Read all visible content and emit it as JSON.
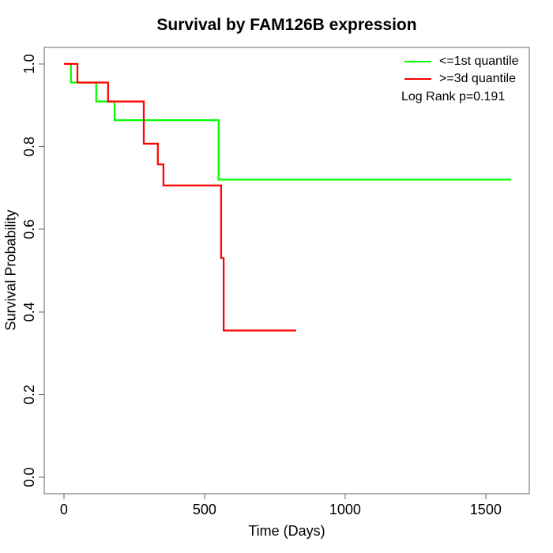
{
  "chart_data": {
    "type": "line",
    "subtype": "kaplan-meier-step",
    "title": "Survival by FAM126B expression",
    "xlabel": "Time (Days)",
    "ylabel": "Survival Probability",
    "xlim": [
      -70,
      1655
    ],
    "ylim": [
      -0.04,
      1.04
    ],
    "grid": false,
    "legend_position": "top-right",
    "x_ticks": [
      {
        "value": 0,
        "label": "0"
      },
      {
        "value": 500,
        "label": "500"
      },
      {
        "value": 1000,
        "label": "1000"
      },
      {
        "value": 1500,
        "label": "1500"
      }
    ],
    "y_ticks": [
      {
        "value": 0.0,
        "label": "0.0"
      },
      {
        "value": 0.2,
        "label": "0.2"
      },
      {
        "value": 0.4,
        "label": "0.4"
      },
      {
        "value": 0.6,
        "label": "0.6"
      },
      {
        "value": 0.8,
        "label": "0.8"
      },
      {
        "value": 1.0,
        "label": "1.0"
      }
    ],
    "series": [
      {
        "name": "<=1st quantile",
        "color": "#00ff00",
        "points": [
          [
            0,
            1.0
          ],
          [
            25,
            1.0
          ],
          [
            25,
            0.955
          ],
          [
            115,
            0.955
          ],
          [
            115,
            0.909
          ],
          [
            180,
            0.909
          ],
          [
            180,
            0.864
          ],
          [
            550,
            0.864
          ],
          [
            550,
            0.72
          ],
          [
            1590,
            0.72
          ]
        ]
      },
      {
        "name": ">=3d quantile",
        "color": "#ff0000",
        "points": [
          [
            0,
            1.0
          ],
          [
            48,
            1.0
          ],
          [
            48,
            0.955
          ],
          [
            157,
            0.955
          ],
          [
            157,
            0.909
          ],
          [
            284,
            0.909
          ],
          [
            284,
            0.807
          ],
          [
            334,
            0.807
          ],
          [
            334,
            0.757
          ],
          [
            354,
            0.757
          ],
          [
            354,
            0.706
          ],
          [
            559,
            0.706
          ],
          [
            559,
            0.53
          ],
          [
            568,
            0.53
          ],
          [
            568,
            0.355
          ],
          [
            826,
            0.355
          ]
        ]
      }
    ],
    "annotation": "Log Rank p=0.191"
  },
  "legend": {
    "entries": [
      {
        "label": "<=1st quantile",
        "color": "#00ff00"
      },
      {
        "label": ">=3d quantile",
        "color": "#ff0000"
      }
    ],
    "note": "Log Rank p=0.191"
  },
  "style": {
    "axis_color": "#666666",
    "text_color": "#000000",
    "curve_width": 2.25
  }
}
